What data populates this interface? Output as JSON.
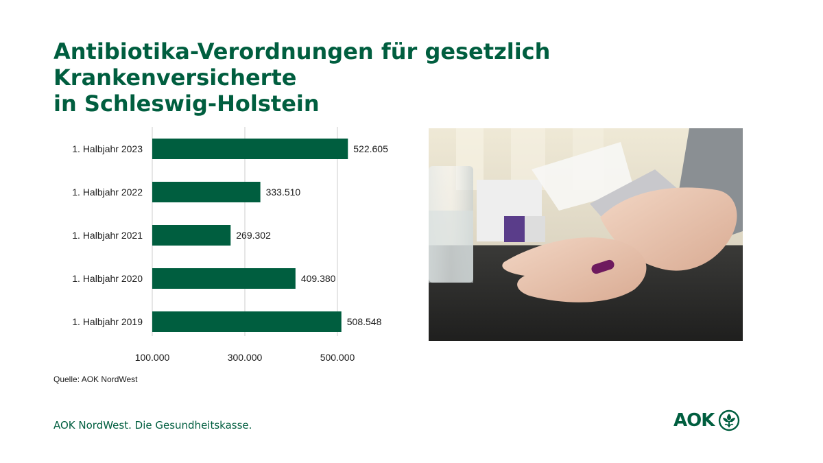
{
  "title": {
    "line1": "Antibiotika-Verordnungen für gesetzlich Krankenversicherte",
    "line2": "in Schleswig-Holstein"
  },
  "chart_data": {
    "type": "bar",
    "orientation": "horizontal",
    "categories": [
      "1. Halbjahr 2023",
      "1. Halbjahr 2022",
      "1. Halbjahr 2021",
      "1. Halbjahr 2020",
      "1. Halbjahr 2019"
    ],
    "values": [
      522605,
      333510,
      269302,
      409380,
      508548
    ],
    "value_labels": [
      "522.605",
      "333.510",
      "269.302",
      "409.380",
      "508.548"
    ],
    "xlim": [
      100000,
      600000
    ],
    "xticks": [
      100000,
      300000,
      500000
    ],
    "xtick_labels": [
      "100.000",
      "300.000",
      "500.000"
    ],
    "bar_color": "#005e3f",
    "grid": true
  },
  "source": "Quelle: AOK NordWest",
  "footer": {
    "tagline": "AOK NordWest. Die Gesundheitskasse.",
    "logo_text": "AOK"
  },
  "colors": {
    "brand": "#005e3f",
    "grid": "#cccccc"
  },
  "photo": {
    "icon": "hand-holding-capsule-photo"
  }
}
